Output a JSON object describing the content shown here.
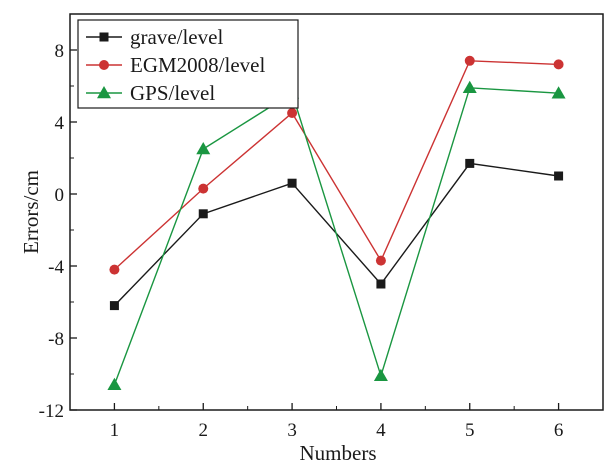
{
  "chart_data": {
    "type": "line",
    "title": "",
    "xlabel": "Numbers",
    "ylabel": "Errors/cm",
    "x": [
      1,
      2,
      3,
      4,
      5,
      6
    ],
    "xlim": [
      0.5,
      6.5
    ],
    "ylim": [
      -12,
      10
    ],
    "xticks": [
      "1",
      "2",
      "3",
      "4",
      "5",
      "6"
    ],
    "yticks": [
      -12,
      -8,
      -4,
      0,
      4,
      8
    ],
    "ytick_labels": [
      "-12",
      "-8",
      "-4",
      "0",
      "4",
      "8"
    ],
    "grid": false,
    "legend_position": "top-left",
    "series": [
      {
        "name": "grave/level",
        "color": "#1a1a1a",
        "marker": "square",
        "values": [
          -6.2,
          -1.1,
          0.6,
          -5.0,
          1.7,
          1.0
        ]
      },
      {
        "name": "EGM2008/level",
        "color": "#cc3333",
        "marker": "circle",
        "values": [
          -4.2,
          0.3,
          4.5,
          -3.7,
          7.4,
          7.2
        ]
      },
      {
        "name": "GPS/level",
        "color": "#1a9641",
        "marker": "triangle",
        "values": [
          -10.6,
          2.5,
          5.6,
          -10.1,
          5.9,
          5.6
        ]
      }
    ]
  }
}
